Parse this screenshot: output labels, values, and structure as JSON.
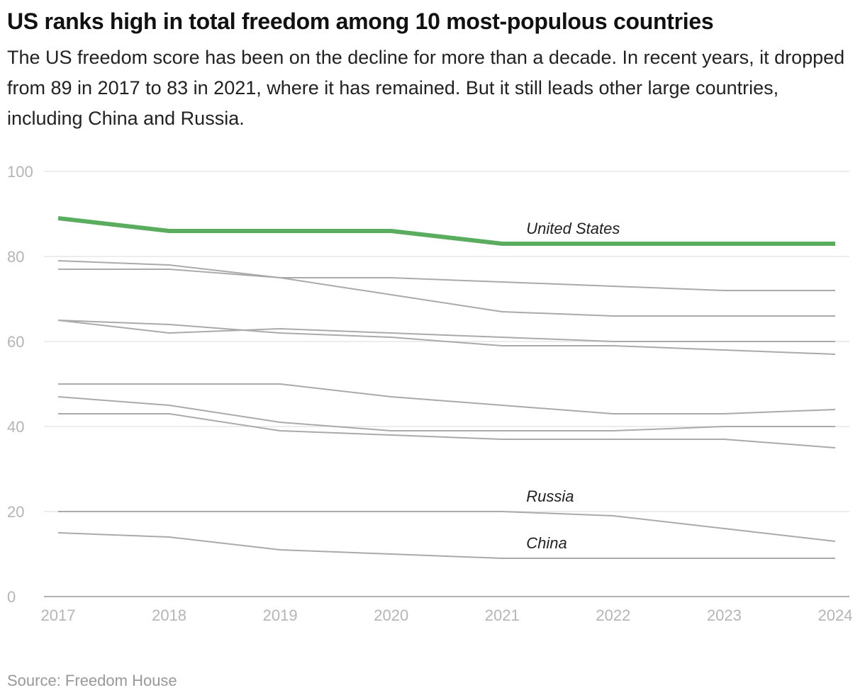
{
  "title": "US ranks high in total freedom among 10 most-populous countries",
  "subtitle": "The US freedom score has been on the decline for more than a decade. In recent years, it dropped from 89 in 2017 to 83 in 2021, where it has remained. But it still leads other large countries, including China and Russia.",
  "source": "Source: Freedom House",
  "chart_data": {
    "type": "line",
    "x": [
      2017,
      2018,
      2019,
      2020,
      2021,
      2022,
      2023,
      2024
    ],
    "xtick_labels": [
      "2017",
      "2018",
      "2019",
      "2020",
      "2021",
      "2022",
      "2023",
      "2024"
    ],
    "ylim": [
      0,
      100
    ],
    "yticks": [
      0,
      20,
      40,
      60,
      80,
      100
    ],
    "ytick_labels": [
      "0",
      "20",
      "40",
      "60",
      "80",
      "100"
    ],
    "grid": true,
    "highlight_color": "#5aad5f",
    "other_color": "#aaaaaa",
    "series": [
      {
        "name": "United States",
        "highlight": true,
        "values": [
          89,
          86,
          86,
          86,
          83,
          83,
          83,
          83
        ]
      },
      {
        "values": [
          79,
          78,
          75,
          71,
          67,
          66,
          66,
          66
        ]
      },
      {
        "values": [
          77,
          77,
          75,
          75,
          74,
          73,
          72,
          72
        ]
      },
      {
        "values": [
          65,
          62,
          63,
          62,
          61,
          60,
          60,
          60
        ]
      },
      {
        "values": [
          65,
          64,
          62,
          61,
          59,
          59,
          58,
          57
        ]
      },
      {
        "values": [
          50,
          50,
          50,
          47,
          45,
          43,
          43,
          44
        ]
      },
      {
        "values": [
          47,
          45,
          41,
          39,
          39,
          39,
          40,
          40
        ]
      },
      {
        "values": [
          43,
          43,
          39,
          38,
          37,
          37,
          37,
          35
        ]
      },
      {
        "name": "Russia",
        "values": [
          20,
          20,
          20,
          20,
          20,
          19,
          16,
          13
        ]
      },
      {
        "name": "China",
        "values": [
          15,
          14,
          11,
          10,
          9,
          9,
          9,
          9
        ]
      }
    ]
  }
}
